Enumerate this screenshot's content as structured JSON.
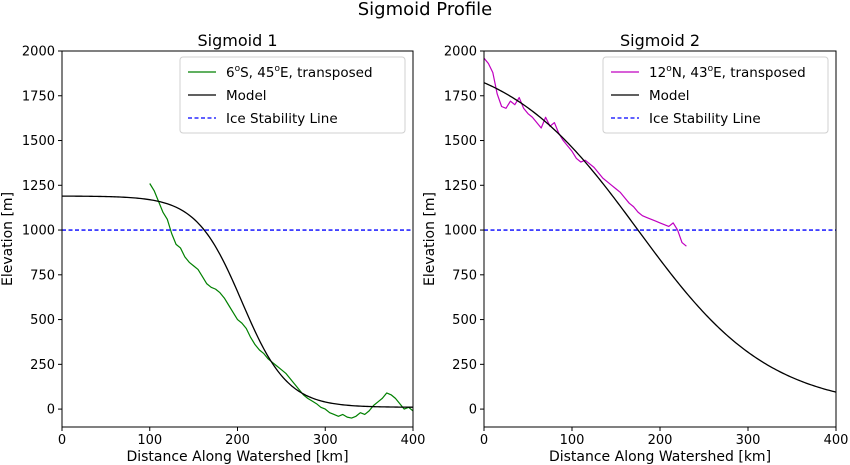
{
  "figure": {
    "suptitle": "Sigmoid Profile"
  },
  "colors": {
    "model": "#000000",
    "stability": "#0000ff",
    "chart1_data": "#008000",
    "chart2_data": "#c000c0"
  },
  "chart_data": [
    {
      "type": "line",
      "title": "Sigmoid 1",
      "xlabel": "Distance Along Watershed [km]",
      "ylabel": "Elevation [m]",
      "xlim": [
        0,
        400
      ],
      "ylim": [
        -100,
        2000
      ],
      "xticks": [
        "0",
        "100",
        "200",
        "300",
        "400"
      ],
      "yticks": [
        "0",
        "250",
        "500",
        "750",
        "1000",
        "1250",
        "1500",
        "1750",
        "2000"
      ],
      "legend_position": "top-right",
      "grid": false,
      "series": [
        {
          "name": "6°S, 45°E, transposed",
          "legend_parts": [
            "6",
            "o",
            "S, 45",
            "o",
            "E, transposed"
          ],
          "color": "#008000",
          "style": "solid",
          "x": [
            100,
            105,
            110,
            115,
            120,
            125,
            130,
            135,
            140,
            145,
            150,
            155,
            160,
            165,
            170,
            175,
            180,
            185,
            190,
            195,
            200,
            205,
            210,
            215,
            220,
            225,
            230,
            235,
            240,
            245,
            250,
            255,
            260,
            265,
            270,
            275,
            280,
            285,
            290,
            295,
            300,
            305,
            310,
            315,
            320,
            325,
            330,
            335,
            340,
            345,
            350,
            355,
            360,
            365,
            370,
            375,
            380,
            385,
            390,
            395,
            400
          ],
          "y": [
            1260,
            1220,
            1160,
            1100,
            1060,
            980,
            920,
            900,
            850,
            820,
            800,
            780,
            740,
            700,
            680,
            670,
            650,
            620,
            580,
            540,
            500,
            480,
            450,
            400,
            360,
            330,
            310,
            280,
            260,
            240,
            220,
            200,
            170,
            140,
            110,
            80,
            60,
            45,
            30,
            10,
            0,
            -20,
            -30,
            -40,
            -30,
            -45,
            -50,
            -40,
            -20,
            -30,
            -10,
            20,
            40,
            60,
            90,
            80,
            60,
            30,
            0,
            10,
            -10
          ]
        },
        {
          "name": "Model",
          "color": "#000000",
          "style": "solid",
          "curve": "sigmoid",
          "params": {
            "low": 10,
            "high": 1190,
            "center": 205,
            "width": 26
          },
          "x_range": [
            0,
            400
          ]
        },
        {
          "name": "Ice Stability Line",
          "color": "#0000ff",
          "style": "dashed",
          "y_constant": 1000
        }
      ]
    },
    {
      "type": "line",
      "title": "Sigmoid 2",
      "xlabel": "Distance Along Watershed [km]",
      "ylabel": "Elevation [m]",
      "xlim": [
        0,
        400
      ],
      "ylim": [
        -100,
        2000
      ],
      "xticks": [
        "0",
        "100",
        "200",
        "300",
        "400"
      ],
      "yticks": [
        "0",
        "250",
        "500",
        "750",
        "1000",
        "1250",
        "1500",
        "1750",
        "2000"
      ],
      "legend_position": "top-right",
      "grid": false,
      "series": [
        {
          "name": "12°N, 43°E, transposed",
          "legend_parts": [
            "12",
            "o",
            "N, 43",
            "o",
            "E, transposed"
          ],
          "color": "#c000c0",
          "style": "solid",
          "x": [
            0,
            5,
            10,
            15,
            20,
            25,
            30,
            35,
            40,
            45,
            50,
            55,
            60,
            65,
            70,
            75,
            80,
            85,
            90,
            95,
            100,
            105,
            110,
            115,
            120,
            125,
            130,
            135,
            140,
            145,
            150,
            155,
            160,
            165,
            170,
            175,
            180,
            185,
            190,
            195,
            200,
            205,
            210,
            215,
            220,
            225,
            230
          ],
          "y": [
            1960,
            1930,
            1880,
            1760,
            1690,
            1680,
            1720,
            1700,
            1740,
            1680,
            1650,
            1630,
            1600,
            1570,
            1630,
            1580,
            1600,
            1540,
            1500,
            1470,
            1440,
            1400,
            1380,
            1390,
            1370,
            1350,
            1320,
            1290,
            1270,
            1250,
            1230,
            1210,
            1180,
            1150,
            1130,
            1100,
            1080,
            1070,
            1060,
            1050,
            1040,
            1030,
            1020,
            1040,
            1000,
            930,
            910
          ]
        },
        {
          "name": "Model",
          "color": "#000000",
          "style": "solid",
          "curve": "sigmoid",
          "params": {
            "low": 0,
            "high": 2000,
            "center": 175,
            "width": 75
          },
          "x_range": [
            0,
            400
          ]
        },
        {
          "name": "Ice Stability Line",
          "color": "#0000ff",
          "style": "dashed",
          "y_constant": 1000
        }
      ]
    }
  ]
}
